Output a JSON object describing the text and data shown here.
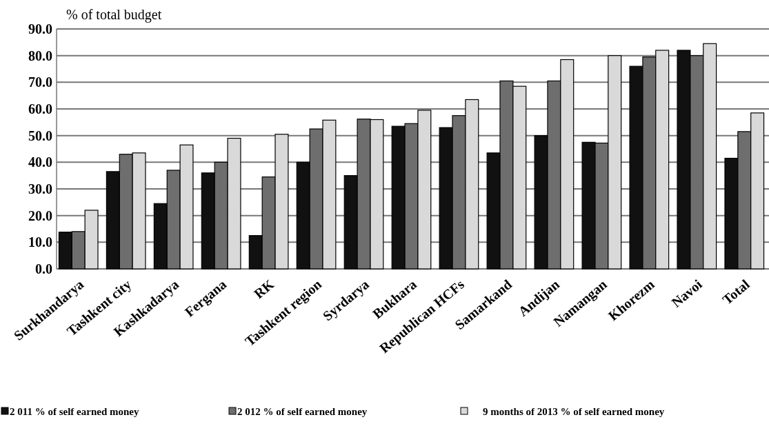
{
  "chart_data": {
    "type": "bar",
    "ylabel": "% of total budget",
    "categories": [
      "Surkhandarya",
      "Tashkent city",
      "Kashkadarya",
      "Fergana",
      "RK",
      "Tashkent region",
      "Syrdarya",
      "Bukhara",
      "Republican HCFs",
      "Samarkand",
      "Andijan",
      "Namangan",
      "Khorezm",
      "Navoi",
      "Total"
    ],
    "series": [
      {
        "name": "2 011 % of self earned money",
        "color": "#111111",
        "values": [
          13.8,
          36.5,
          24.5,
          36,
          12.5,
          40,
          35,
          53.5,
          53,
          43.5,
          50,
          47.5,
          76,
          82,
          41.5
        ]
      },
      {
        "name": "2 012 % of self earned money",
        "color": "#6e6e6e",
        "values": [
          14,
          43,
          37,
          40,
          34.5,
          52.5,
          56.2,
          54.5,
          57.5,
          70.5,
          70.5,
          47.2,
          79.5,
          80,
          51.5
        ]
      },
      {
        "name": "9 months of 2013  % of self earned money",
        "color": "#d9d9d9",
        "values": [
          22,
          43.5,
          46.5,
          49,
          50.5,
          55.8,
          56,
          59.5,
          63.5,
          68.5,
          78.5,
          80,
          82,
          84.5,
          58.5
        ]
      }
    ],
    "ylim": [
      0,
      90
    ],
    "yticks": [
      {
        "value": 0,
        "label": "0.0"
      },
      {
        "value": 10,
        "label": "10.0"
      },
      {
        "value": 20,
        "label": "20.0"
      },
      {
        "value": 30,
        "label": "30.0"
      },
      {
        "value": 40,
        "label": "40.0"
      },
      {
        "value": 50,
        "label": "50.0"
      },
      {
        "value": 60,
        "label": "60.0"
      },
      {
        "value": 70,
        "label": "70.0"
      },
      {
        "value": 80,
        "label": "80.0"
      },
      {
        "value": 90,
        "label": "90.0"
      }
    ],
    "grid": "y",
    "legend": "bottom"
  }
}
